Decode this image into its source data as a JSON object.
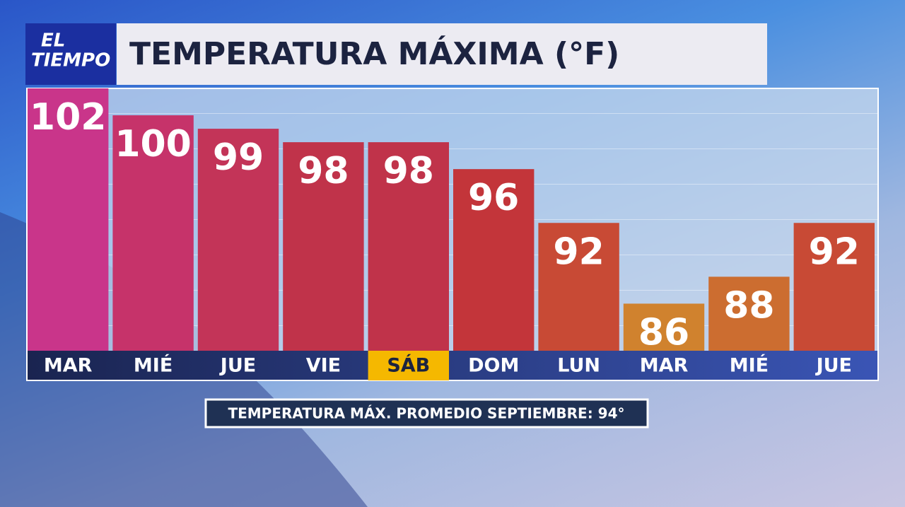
{
  "brand": [
    "EL",
    "TIEMPO"
  ],
  "chart_data": {
    "type": "bar",
    "title": "TEMPERATURA MÁXIMA (°F)",
    "categories": [
      "MAR",
      "MIÉ",
      "JUE",
      "VIE",
      "SÁB",
      "DOM",
      "LUN",
      "MAR",
      "MIÉ",
      "JUE"
    ],
    "values": [
      102,
      100,
      99,
      98,
      98,
      96,
      92,
      86,
      88,
      92
    ],
    "colors": [
      "#c9358a",
      "#c6336a",
      "#c33458",
      "#c0334a",
      "#c0334a",
      "#c3353a",
      "#c84a35",
      "#d0822e",
      "#cc6d30",
      "#c84a35"
    ],
    "highlight": {
      "index": 4,
      "color": "#f5b800"
    },
    "ylim": [
      82.5,
      102
    ],
    "note": "TEMPERATURA MÁX. PROMEDIO SEPTIEMBRE: 94°"
  }
}
